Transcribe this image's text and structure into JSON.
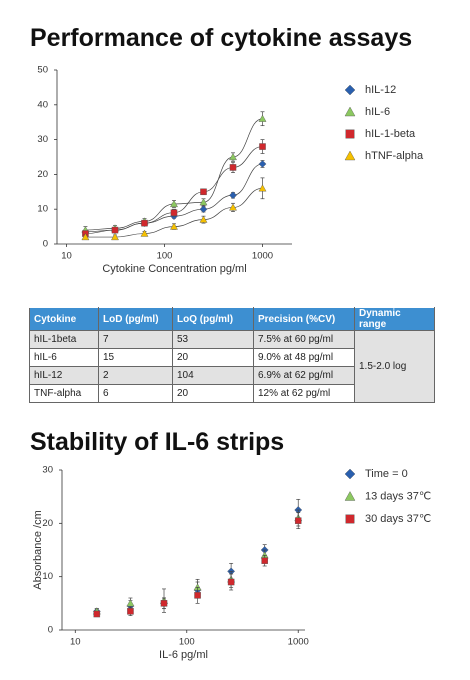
{
  "chart_data": [
    {
      "type": "scatter",
      "title": "Performance of cytokine assays",
      "xlabel": "Cytokine Concentration pg/ml",
      "xscale": "log",
      "xlim": [
        8,
        2000
      ],
      "xticks": [
        10,
        100,
        1000
      ],
      "ylim": [
        0,
        50
      ],
      "yticks": [
        0,
        10,
        20,
        30,
        40,
        50
      ],
      "fit_lines": true,
      "legend": "right",
      "x": [
        15.6,
        31.25,
        62.5,
        125,
        250,
        500,
        1000
      ],
      "series": [
        {
          "name": "hIL-12",
          "color": "#2a5fae",
          "marker": "diamond",
          "values": [
            3.5,
            4,
            6,
            8,
            10,
            14,
            23
          ],
          "errors": [
            0.5,
            0.5,
            0.5,
            0.6,
            0.8,
            0.8,
            1
          ]
        },
        {
          "name": "hIL-6",
          "color": "#8cc860",
          "marker": "triangle",
          "values": [
            4,
            4.5,
            6.5,
            11.5,
            12,
            25,
            36
          ],
          "errors": [
            1,
            0.8,
            0.8,
            1,
            1,
            1.2,
            2
          ]
        },
        {
          "name": "hIL-1-beta",
          "color": "#d0282d",
          "marker": "square",
          "values": [
            3,
            4,
            6,
            9,
            15,
            22,
            28
          ],
          "errors": [
            0.6,
            0.6,
            0.8,
            1,
            0.8,
            1.5,
            2
          ]
        },
        {
          "name": "hTNF-alpha",
          "color": "#f5c000",
          "marker": "triangle",
          "values": [
            2,
            2,
            3,
            5,
            7,
            10.5,
            16
          ],
          "errors": [
            0.6,
            0.6,
            0.6,
            0.8,
            1,
            1.2,
            3
          ]
        }
      ]
    },
    {
      "type": "scatter",
      "title": "Stability of IL-6 strips",
      "xlabel": "IL-6 pg/ml",
      "ylabel": "Absorbance /cm",
      "xscale": "log",
      "xlim": [
        7.6,
        1150
      ],
      "xticks": [
        10,
        100,
        1000
      ],
      "ylim": [
        0,
        30
      ],
      "yticks": [
        0,
        10,
        20,
        30
      ],
      "fit_lines": false,
      "legend": "right",
      "x": [
        15.6,
        31.25,
        62.5,
        125,
        250,
        500,
        1000
      ],
      "series": [
        {
          "name": "Time = 0",
          "color": "#2a5fae",
          "marker": "diamond",
          "values": [
            3.5,
            4.5,
            5,
            7.5,
            11,
            15,
            22.5
          ],
          "errors": [
            0.5,
            1,
            1,
            1.5,
            1.5,
            1,
            2
          ]
        },
        {
          "name": "13 days 37℃",
          "color": "#8cc860",
          "marker": "triangle",
          "values": [
            3.5,
            5,
            5.5,
            8,
            9.5,
            14,
            21
          ],
          "errors": [
            0.5,
            1,
            2.2,
            1.5,
            1.5,
            1,
            1.5
          ]
        },
        {
          "name": "30 days 37℃",
          "color": "#d0282d",
          "marker": "square",
          "values": [
            3,
            3.5,
            5,
            6.5,
            9,
            13,
            20.5
          ],
          "errors": [
            0.5,
            0.8,
            1,
            1.5,
            1.5,
            1,
            1.5
          ]
        }
      ]
    }
  ],
  "table": {
    "header": [
      "Cytokine",
      "LoD (pg/ml)",
      "LoQ (pg/ml)",
      "Precision (%CV)",
      "Dynamic range"
    ],
    "rows": [
      [
        "hIL-1beta",
        7,
        53,
        "7.5% at 60 pg/ml"
      ],
      [
        "hIL-6",
        15,
        20,
        "9.0% at 48 pg/ml"
      ],
      [
        "hIL-12",
        2,
        104,
        "6.9% at 62 pg/ml"
      ],
      [
        "TNF-alpha",
        6,
        20,
        "12% at 62 pg/ml"
      ]
    ],
    "dynamic_range": "1.5-2.0 log"
  }
}
